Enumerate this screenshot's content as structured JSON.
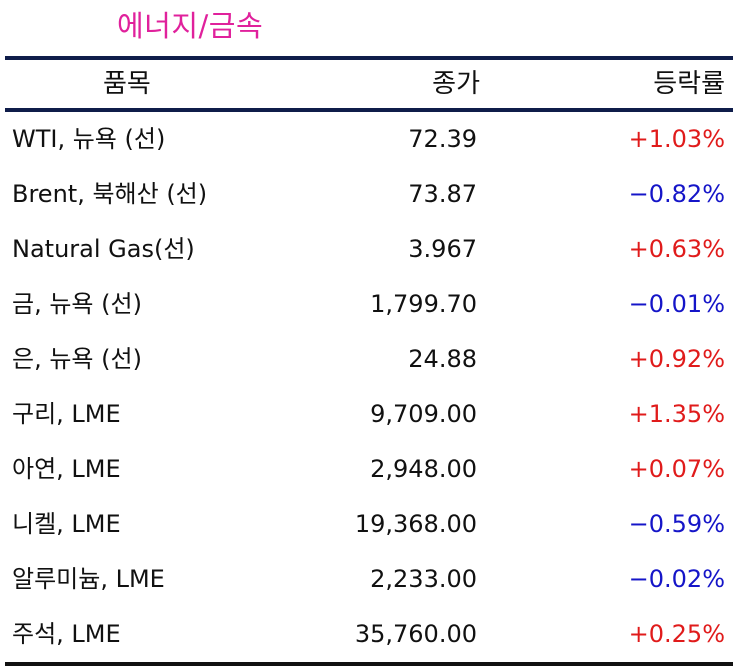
{
  "section_title": "에너지/금속",
  "table": {
    "columns": {
      "name": "품목",
      "close": "종가",
      "change": "등락률"
    },
    "rows": [
      {
        "name": "WTI, 뉴욕 (선)",
        "close": "72.39",
        "change": "+1.03%",
        "direction": "up"
      },
      {
        "name": "Brent, 북해산 (선)",
        "close": "73.87",
        "change": "−0.82%",
        "direction": "down"
      },
      {
        "name": "Natural Gas(선)",
        "close": "3.967",
        "change": "+0.63%",
        "direction": "up"
      },
      {
        "name": "금, 뉴욕  (선)",
        "close": "1,799.70",
        "change": "−0.01%",
        "direction": "down"
      },
      {
        "name": "은, 뉴욕  (선)",
        "close": "24.88",
        "change": "+0.92%",
        "direction": "up"
      },
      {
        "name": "구리, LME",
        "close": "9,709.00",
        "change": "+1.35%",
        "direction": "up"
      },
      {
        "name": "아연, LME",
        "close": "2,948.00",
        "change": "+0.07%",
        "direction": "up"
      },
      {
        "name": "니켈, LME",
        "close": "19,368.00",
        "change": "−0.59%",
        "direction": "down"
      },
      {
        "name": "알루미늄, LME",
        "close": "2,233.00",
        "change": "−0.02%",
        "direction": "down"
      },
      {
        "name": "주석, LME",
        "close": "35,760.00",
        "change": "+0.25%",
        "direction": "up"
      }
    ]
  },
  "colors": {
    "title": "#e0219c",
    "up": "#e01b1b",
    "down": "#1515c8",
    "rule": "#0f1d4a"
  }
}
